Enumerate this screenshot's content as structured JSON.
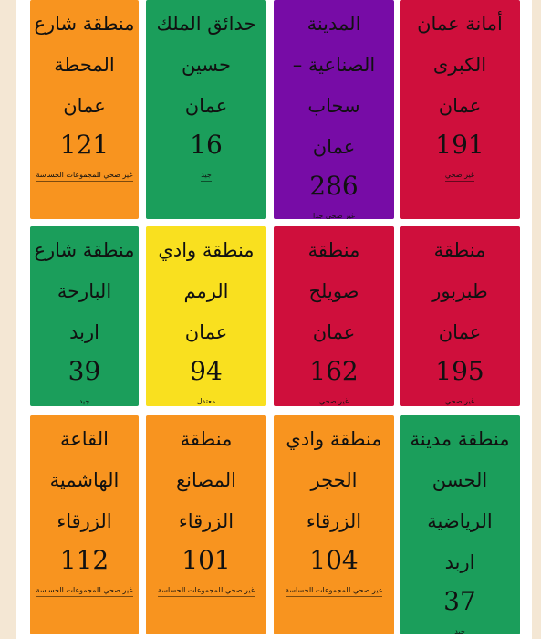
{
  "rows": [
    [
      {
        "lines": [
          "أمانة عمان",
          "الكبرى",
          "عمان"
        ],
        "value": 191,
        "status": "غير صحي",
        "color": "#cf0f3c"
      },
      {
        "lines": [
          "المدينة",
          "الصناعية –",
          "سحاب",
          "عمان"
        ],
        "value": 286,
        "status": "غير صحي جدا",
        "color": "#770ca6"
      },
      {
        "lines": [
          "حدائق الملك",
          "حسين",
          "عمان"
        ],
        "value": 16,
        "status": "جيد",
        "color": "#1b9e5b"
      },
      {
        "lines": [
          "منطقة شارع",
          "المحطة",
          "عمان"
        ],
        "value": 121,
        "status": "غير صحي للمجموعات الحساسة",
        "color": "#f8941f"
      }
    ],
    [
      {
        "lines": [
          "منطقة",
          "طبربور",
          "عمان"
        ],
        "value": 195,
        "status": "غير صحي",
        "color": "#cf0f3c"
      },
      {
        "lines": [
          "منطقة",
          "صويلح",
          "عمان"
        ],
        "value": 162,
        "status": "غير صحي",
        "color": "#cf0f3c"
      },
      {
        "lines": [
          "منطقة وادي",
          "الرمم",
          "عمان"
        ],
        "value": 94,
        "status": "معتدل",
        "color": "#f9e01f"
      },
      {
        "lines": [
          "منطقة شارع",
          "البارحة",
          "اربد"
        ],
        "value": 39,
        "status": "جيد",
        "color": "#1b9e5b"
      }
    ],
    [
      {
        "lines": [
          "منطقة مدينة",
          "الحسن",
          "الرياضية",
          "اربد"
        ],
        "value": 37,
        "status": "جيد",
        "color": "#1b9e5b"
      },
      {
        "lines": [
          "منطقة وادي",
          "الحجر",
          "الزرقاء"
        ],
        "value": 104,
        "status": "غير صحي للمجموعات الحساسة",
        "color": "#f8941f"
      },
      {
        "lines": [
          "منطقة",
          "المصانع",
          "الزرقاء"
        ],
        "value": 101,
        "status": "غير صحي للمجموعات الحساسة",
        "color": "#f8941f"
      },
      {
        "lines": [
          "القاعة",
          "الهاشمية",
          "الزرقاء"
        ],
        "value": 112,
        "status": "غير صحي للمجموعات الحساسة",
        "color": "#f8941f"
      }
    ]
  ]
}
